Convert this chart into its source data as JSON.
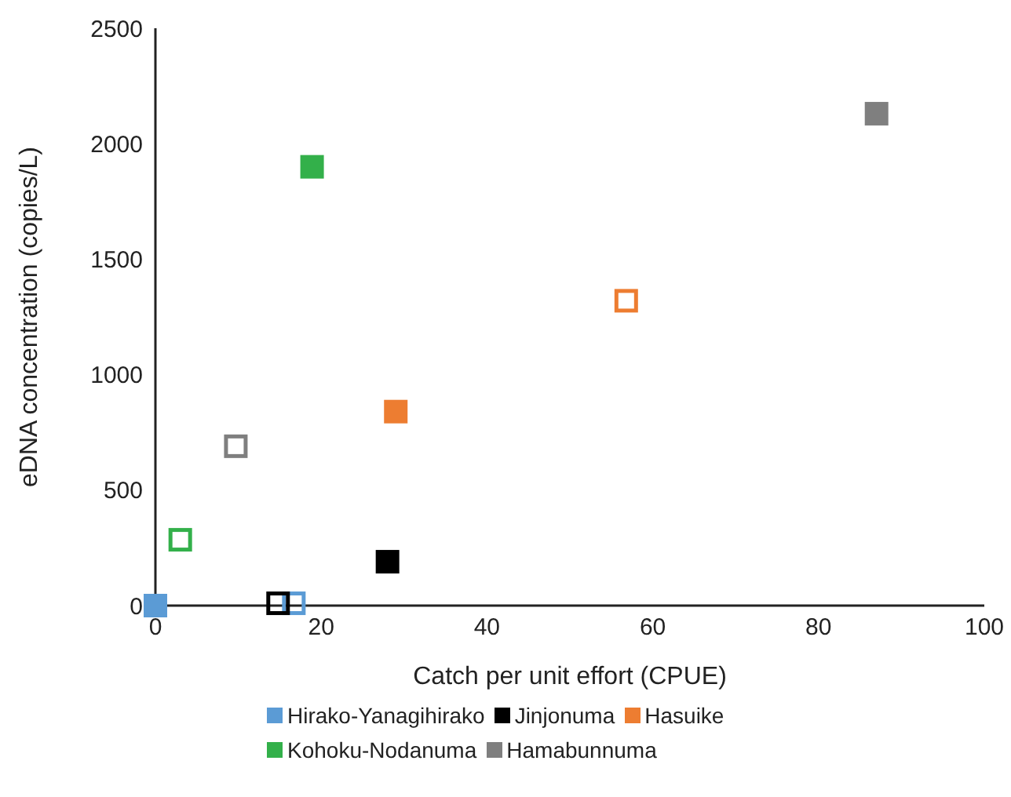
{
  "chart_data": {
    "type": "scatter",
    "xlabel": "Catch per unit effort (CPUE)",
    "ylabel": "eDNA concentration (copies/L)",
    "xlim": [
      0,
      100
    ],
    "xticks": [
      0,
      20,
      40,
      60,
      80,
      100
    ],
    "ylim": [
      0,
      2500
    ],
    "yticks": [
      0,
      500,
      1000,
      1500,
      2000,
      2500
    ],
    "grid": false,
    "legend": "bottom",
    "marker": "square",
    "series": [
      {
        "name": "Hirako-Yanagihirako",
        "color": "#5b9bd5",
        "x": [
          0
        ],
        "values": [
          0
        ]
      },
      {
        "name": "Jinjonuma",
        "color": "#000000",
        "x": [
          28
        ],
        "values": [
          190
        ]
      },
      {
        "name": "Hasuike",
        "color": "#ed7d31",
        "x": [
          29
        ],
        "values": [
          840
        ]
      },
      {
        "name": "Kohoku-Nodanuma",
        "color": "#33b04a",
        "x": [
          18.9
        ],
        "values": [
          1900
        ]
      },
      {
        "name": "Hamabunnuma",
        "color": "#7f7f7f",
        "x": [
          87
        ],
        "values": [
          2130
        ]
      },
      {
        "color": "#5b9bd5",
        "x": [
          16.7
        ],
        "values": [
          10
        ]
      },
      {
        "color": "#000000",
        "x": [
          14.8
        ],
        "values": [
          10
        ]
      },
      {
        "color": "#ed7d31",
        "x": [
          56.8
        ],
        "values": [
          1320
        ]
      },
      {
        "color": "#33b04a",
        "x": [
          3
        ],
        "values": [
          285
        ]
      },
      {
        "color": "#7f7f7f",
        "x": [
          9.7
        ],
        "values": [
          690
        ]
      }
    ]
  }
}
